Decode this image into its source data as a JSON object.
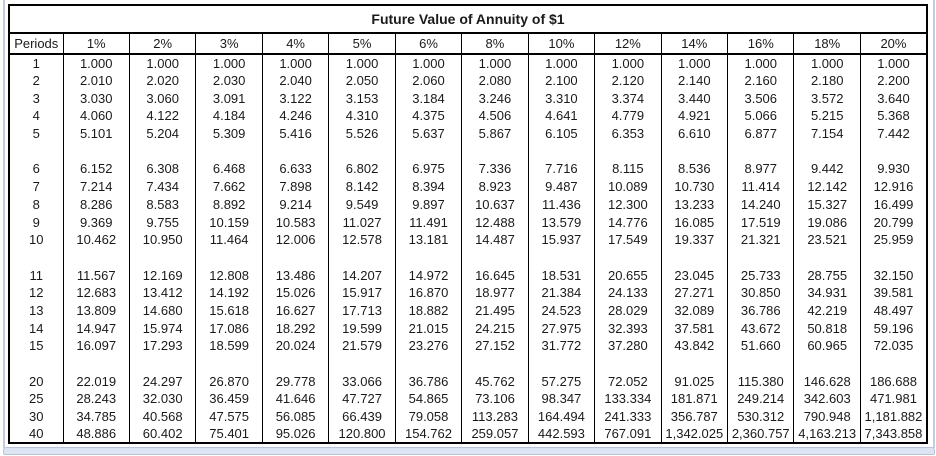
{
  "title": "Future Value of Annuity of $1",
  "table": {
    "corner_header": "Periods",
    "rate_headers": [
      "1%",
      "2%",
      "3%",
      "4%",
      "5%",
      "6%",
      "8%",
      "10%",
      "12%",
      "14%",
      "16%",
      "18%",
      "20%"
    ],
    "row_groups": [
      {
        "rows": [
          {
            "period": "1",
            "values": [
              "1.000",
              "1.000",
              "1.000",
              "1.000",
              "1.000",
              "1.000",
              "1.000",
              "1.000",
              "1.000",
              "1.000",
              "1.000",
              "1.000",
              "1.000"
            ]
          },
          {
            "period": "2",
            "values": [
              "2.010",
              "2.020",
              "2.030",
              "2.040",
              "2.050",
              "2.060",
              "2.080",
              "2.100",
              "2.120",
              "2.140",
              "2.160",
              "2.180",
              "2.200"
            ]
          },
          {
            "period": "3",
            "values": [
              "3.030",
              "3.060",
              "3.091",
              "3.122",
              "3.153",
              "3.184",
              "3.246",
              "3.310",
              "3.374",
              "3.440",
              "3.506",
              "3.572",
              "3.640"
            ]
          },
          {
            "period": "4",
            "values": [
              "4.060",
              "4.122",
              "4.184",
              "4.246",
              "4.310",
              "4.375",
              "4.506",
              "4.641",
              "4.779",
              "4.921",
              "5.066",
              "5.215",
              "5.368"
            ]
          },
          {
            "period": "5",
            "values": [
              "5.101",
              "5.204",
              "5.309",
              "5.416",
              "5.526",
              "5.637",
              "5.867",
              "6.105",
              "6.353",
              "6.610",
              "6.877",
              "7.154",
              "7.442"
            ]
          }
        ]
      },
      {
        "rows": [
          {
            "period": "6",
            "values": [
              "6.152",
              "6.308",
              "6.468",
              "6.633",
              "6.802",
              "6.975",
              "7.336",
              "7.716",
              "8.115",
              "8.536",
              "8.977",
              "9.442",
              "9.930"
            ]
          },
          {
            "period": "7",
            "values": [
              "7.214",
              "7.434",
              "7.662",
              "7.898",
              "8.142",
              "8.394",
              "8.923",
              "9.487",
              "10.089",
              "10.730",
              "11.414",
              "12.142",
              "12.916"
            ]
          },
          {
            "period": "8",
            "values": [
              "8.286",
              "8.583",
              "8.892",
              "9.214",
              "9.549",
              "9.897",
              "10.637",
              "11.436",
              "12.300",
              "13.233",
              "14.240",
              "15.327",
              "16.499"
            ]
          },
          {
            "period": "9",
            "values": [
              "9.369",
              "9.755",
              "10.159",
              "10.583",
              "11.027",
              "11.491",
              "12.488",
              "13.579",
              "14.776",
              "16.085",
              "17.519",
              "19.086",
              "20.799"
            ]
          },
          {
            "period": "10",
            "values": [
              "10.462",
              "10.950",
              "11.464",
              "12.006",
              "12.578",
              "13.181",
              "14.487",
              "15.937",
              "17.549",
              "19.337",
              "21.321",
              "23.521",
              "25.959"
            ]
          }
        ]
      },
      {
        "rows": [
          {
            "period": "11",
            "values": [
              "11.567",
              "12.169",
              "12.808",
              "13.486",
              "14.207",
              "14.972",
              "16.645",
              "18.531",
              "20.655",
              "23.045",
              "25.733",
              "28.755",
              "32.150"
            ]
          },
          {
            "period": "12",
            "values": [
              "12.683",
              "13.412",
              "14.192",
              "15.026",
              "15.917",
              "16.870",
              "18.977",
              "21.384",
              "24.133",
              "27.271",
              "30.850",
              "34.931",
              "39.581"
            ]
          },
          {
            "period": "13",
            "values": [
              "13.809",
              "14.680",
              "15.618",
              "16.627",
              "17.713",
              "18.882",
              "21.495",
              "24.523",
              "28.029",
              "32.089",
              "36.786",
              "42.219",
              "48.497"
            ]
          },
          {
            "period": "14",
            "values": [
              "14.947",
              "15.974",
              "17.086",
              "18.292",
              "19.599",
              "21.015",
              "24.215",
              "27.975",
              "32.393",
              "37.581",
              "43.672",
              "50.818",
              "59.196"
            ]
          },
          {
            "period": "15",
            "values": [
              "16.097",
              "17.293",
              "18.599",
              "20.024",
              "21.579",
              "23.276",
              "27.152",
              "31.772",
              "37.280",
              "43.842",
              "51.660",
              "60.965",
              "72.035"
            ]
          }
        ]
      },
      {
        "rows": [
          {
            "period": "20",
            "values": [
              "22.019",
              "24.297",
              "26.870",
              "29.778",
              "33.066",
              "36.786",
              "45.762",
              "57.275",
              "72.052",
              "91.025",
              "115.380",
              "146.628",
              "186.688"
            ]
          },
          {
            "period": "25",
            "values": [
              "28.243",
              "32.030",
              "36.459",
              "41.646",
              "47.727",
              "54.865",
              "73.106",
              "98.347",
              "133.334",
              "181.871",
              "249.214",
              "342.603",
              "471.981"
            ]
          },
          {
            "period": "30",
            "values": [
              "34.785",
              "40.568",
              "47.575",
              "56.085",
              "66.439",
              "79.058",
              "113.283",
              "164.494",
              "241.333",
              "356.787",
              "530.312",
              "790.948",
              "1,181.882"
            ]
          },
          {
            "period": "40",
            "values": [
              "48.886",
              "60.402",
              "75.401",
              "95.026",
              "120.800",
              "154.762",
              "259.057",
              "442.593",
              "767.091",
              "1,342.025",
              "2,360.757",
              "4,163.213",
              "7,343.858"
            ]
          }
        ]
      }
    ]
  },
  "colors": {
    "border": "#000000",
    "text": "#1a1a1a",
    "edge_strip": "#c3cde0",
    "bottom_bar": "#dde5f2",
    "background": "#ffffff"
  }
}
